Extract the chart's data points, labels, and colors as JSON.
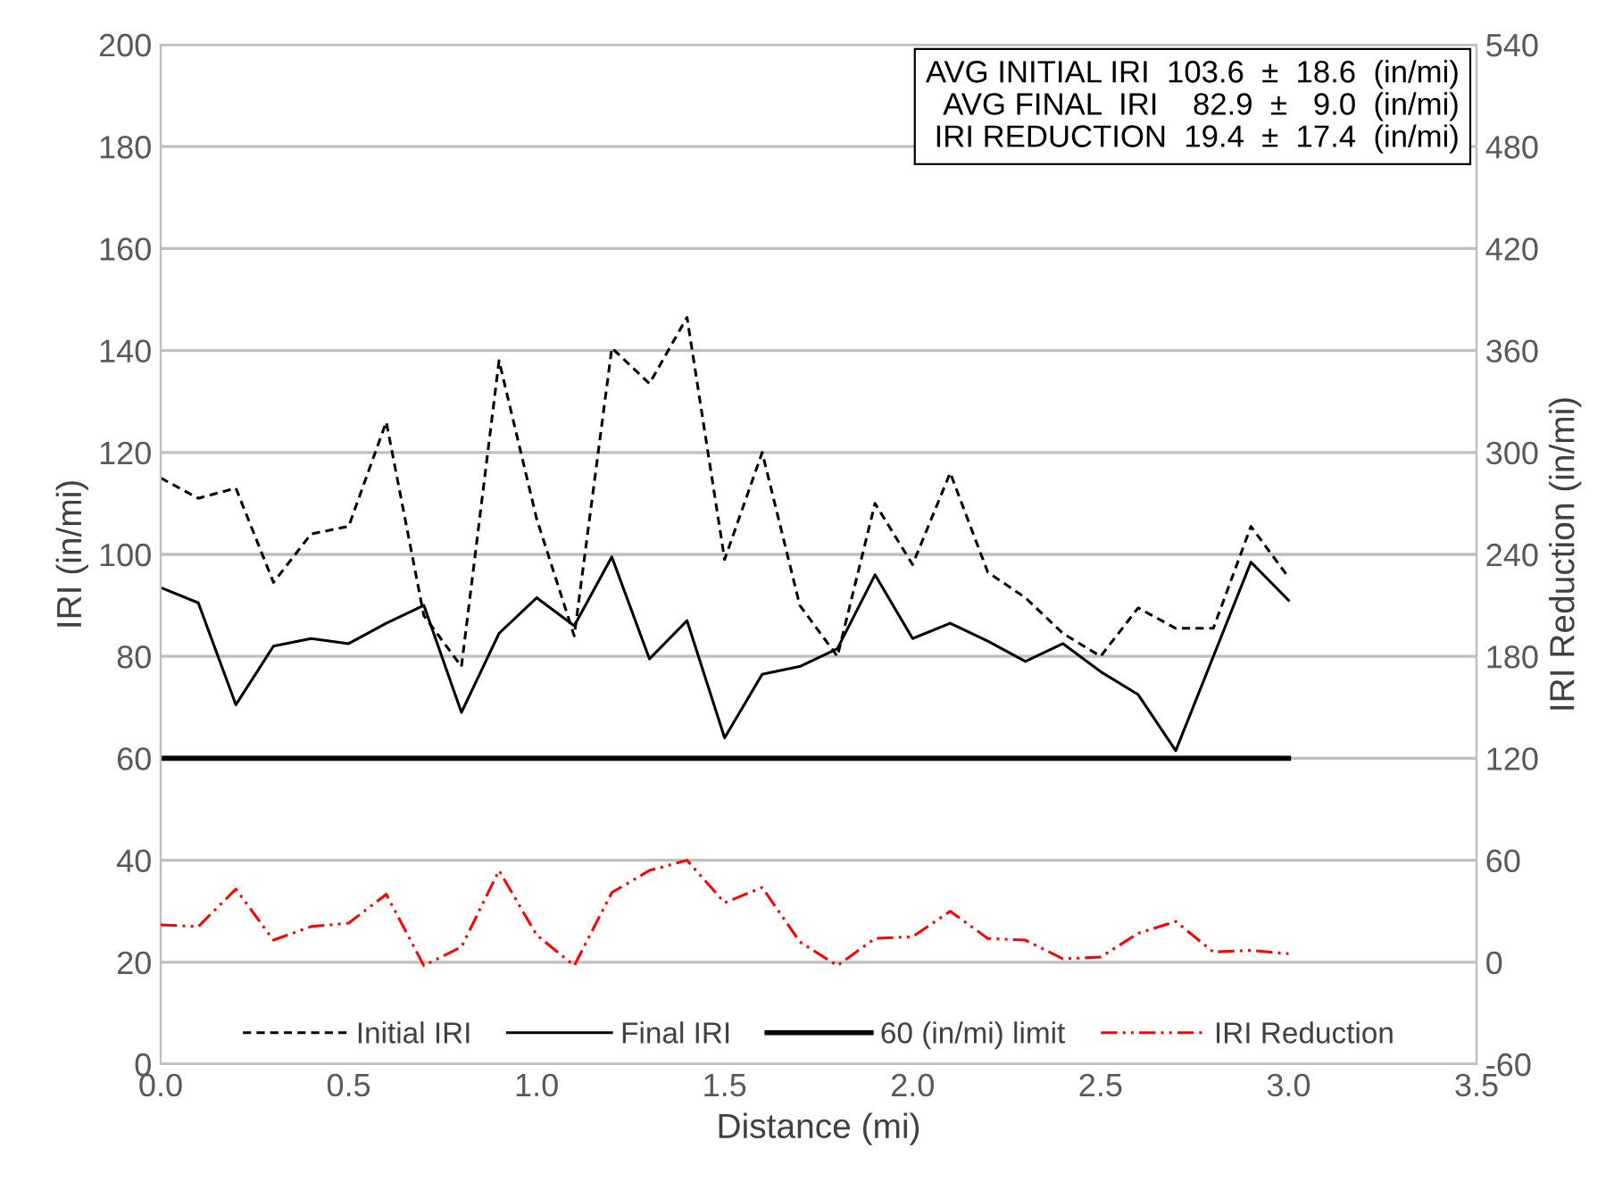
{
  "chart_data": {
    "type": "line",
    "xlabel": "Distance (mi)",
    "ylabel": "IRI (in/mi)",
    "y2label": "IRI Reduction (in/mi)",
    "x": [
      0,
      0.1,
      0.2,
      0.3,
      0.4,
      0.5,
      0.6,
      0.7,
      0.8,
      0.9,
      1.0,
      1.1,
      1.2,
      1.3,
      1.4,
      1.5,
      1.6,
      1.7,
      1.8,
      1.9,
      2.0,
      2.1,
      2.2,
      2.3,
      2.4,
      2.5,
      2.6,
      2.7,
      2.8,
      2.9,
      3.0
    ],
    "series": [
      {
        "name": "Initial IRI",
        "color": "#000000",
        "line_style": "dashed",
        "values": [
          115,
          111,
          113,
          94.5,
          104,
          105.5,
          126,
          88,
          78,
          138,
          107,
          84,
          140.5,
          133.5,
          146.5,
          99,
          120,
          90,
          80,
          110,
          98,
          116,
          96.5,
          91.5,
          84.5,
          80,
          89.5,
          85.5,
          85.5,
          105.5,
          95.5
        ]
      },
      {
        "name": "Final IRI",
        "color": "#000000",
        "line_style": "solid",
        "values": [
          93.5,
          90.5,
          70.5,
          82,
          83.5,
          82.5,
          86.5,
          90,
          69,
          84.5,
          91.5,
          86,
          99.5,
          79.5,
          87,
          64,
          76.5,
          78,
          81.5,
          96,
          83.5,
          86.5,
          83,
          79,
          82.5,
          77,
          72.5,
          61.5,
          80,
          98.5,
          91
        ]
      },
      {
        "name": "IRI Reduction",
        "color": "#ff0000",
        "line_style": "dashdot",
        "axis": "y2",
        "values": [
          22,
          21,
          43,
          13,
          21,
          23,
          40,
          -2,
          9,
          54,
          16,
          -2,
          41,
          54,
          60,
          35,
          44,
          12,
          -2,
          14,
          15,
          30,
          14,
          13,
          2,
          3,
          17,
          24,
          6,
          7,
          5
        ]
      }
    ],
    "ref_lines": [
      {
        "axis": "y",
        "value": 60,
        "label": "60 (in/mi) limit",
        "color": "#000000"
      }
    ],
    "xlim": [
      0,
      3.5
    ],
    "xticks": [
      {
        "value": 0,
        "label": "0.0"
      },
      0.5,
      {
        "value": 1,
        "label": "1.0"
      },
      1.5,
      {
        "value": 2,
        "label": "2.0"
      },
      2.5,
      {
        "value": 3,
        "label": "3.0"
      },
      3.5
    ],
    "ylim": [
      0,
      200
    ],
    "yticks": [
      0,
      20,
      40,
      60,
      80,
      100,
      120,
      140,
      160,
      180,
      200
    ],
    "y2lim": [
      -60,
      540
    ],
    "y2ticks": [
      -60,
      0,
      60,
      120,
      180,
      240,
      300,
      360,
      420,
      480,
      540
    ],
    "grid": "y",
    "legend": "bottom",
    "marker": "none",
    "annotations": [
      "AVG INITIAL IRI  103.6  ±  18.6  (in/mi)",
      "AVG FINAL  IRI    82.9  ±   9.0  (in/mi)",
      "IRI REDUCTION  19.4  ±  17.4  (in/mi)"
    ]
  }
}
